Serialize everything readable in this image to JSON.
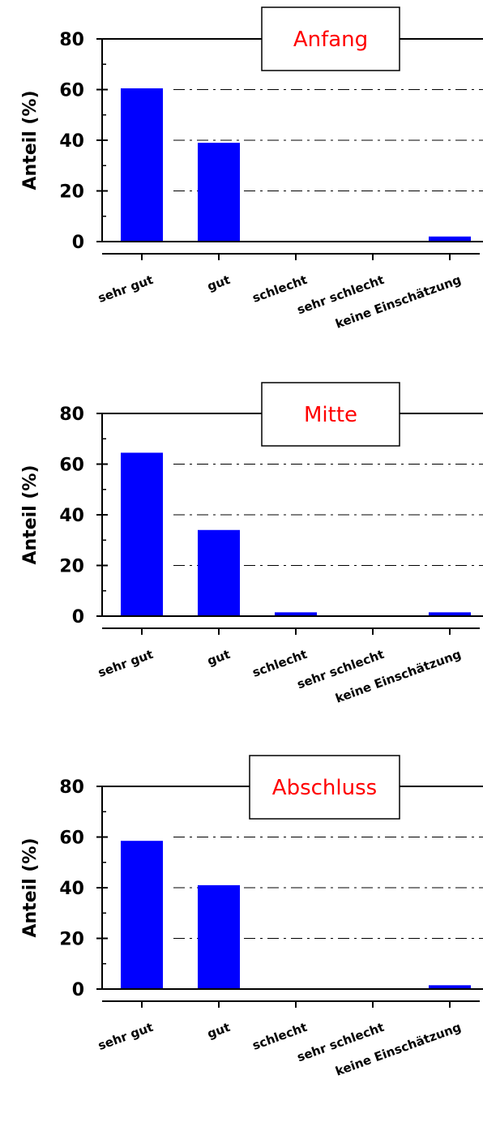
{
  "chart_data": [
    {
      "type": "bar",
      "title": "Anfang",
      "ylabel": "Anteil (%)",
      "xlabel": "",
      "categories": [
        "sehr gut",
        "gut",
        "schlecht",
        "sehr schlecht",
        "keine Einschätzung"
      ],
      "values": [
        60.5,
        39,
        0,
        0,
        2
      ],
      "ylim": [
        0,
        80
      ],
      "yticks": [
        0,
        20,
        40,
        60,
        80
      ],
      "grid": "dash-dot horizontal at 20, 40, 60",
      "bar_color": "#0000ff",
      "title_color": "#ff0000"
    },
    {
      "type": "bar",
      "title": "Mitte",
      "ylabel": "Anteil (%)",
      "xlabel": "",
      "categories": [
        "sehr gut",
        "gut",
        "schlecht",
        "sehr schlecht",
        "keine Einschätzung"
      ],
      "values": [
        64.5,
        34,
        1.5,
        0,
        1.5
      ],
      "ylim": [
        0,
        80
      ],
      "yticks": [
        0,
        20,
        40,
        60,
        80
      ],
      "grid": "dash-dot horizontal at 20, 40, 60",
      "bar_color": "#0000ff",
      "title_color": "#ff0000"
    },
    {
      "type": "bar",
      "title": "Abschluss",
      "ylabel": "Anteil (%)",
      "xlabel": "",
      "categories": [
        "sehr gut",
        "gut",
        "schlecht",
        "sehr schlecht",
        "keine Einschätzung"
      ],
      "values": [
        58.5,
        41,
        0,
        0,
        1.5
      ],
      "ylim": [
        0,
        80
      ],
      "yticks": [
        0,
        20,
        40,
        60,
        80
      ],
      "grid": "dash-dot horizontal at 20, 40, 60",
      "bar_color": "#0000ff",
      "title_color": "#ff0000"
    }
  ]
}
